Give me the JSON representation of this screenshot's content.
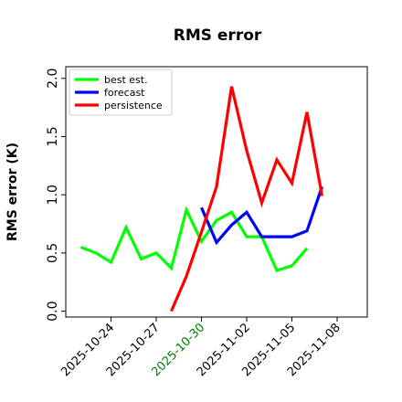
{
  "chart_data": {
    "type": "line",
    "title": "RMS error",
    "xlabel": "",
    "ylabel": "RMS error (K)",
    "ylim": [
      -0.05,
      2.1
    ],
    "xlim": [
      "2025-10-21",
      "2025-11-10"
    ],
    "yticks": [
      "0.0",
      "0.5",
      "1.0",
      "1.5",
      "2.0"
    ],
    "xticks": [
      {
        "date": "2025-10-24",
        "label": "2025-10-24",
        "color": "#000000"
      },
      {
        "date": "2025-10-27",
        "label": "2025-10-27",
        "color": "#000000"
      },
      {
        "date": "2025-10-30",
        "label": "2025-10-30",
        "color": "#008000"
      },
      {
        "date": "2025-11-02",
        "label": "2025-11-02",
        "color": "#000000"
      },
      {
        "date": "2025-11-05",
        "label": "2025-11-05",
        "color": "#000000"
      },
      {
        "date": "2025-11-08",
        "label": "2025-11-08",
        "color": "#000000"
      }
    ],
    "grid": false,
    "legend_position": "top-left",
    "series": [
      {
        "name": "best est.",
        "color": "#00ff00",
        "x": [
          "2025-10-22",
          "2025-10-23",
          "2025-10-24",
          "2025-10-25",
          "2025-10-26",
          "2025-10-27",
          "2025-10-28",
          "2025-10-29",
          "2025-10-30",
          "2025-10-31",
          "2025-11-01",
          "2025-11-02",
          "2025-11-03",
          "2025-11-04",
          "2025-11-05",
          "2025-11-06",
          "2025-11-07"
        ],
        "y": [
          0.55,
          0.5,
          0.42,
          0.72,
          0.45,
          0.5,
          0.37,
          0.87,
          0.6,
          0.78,
          0.85,
          0.64,
          0.64,
          0.35,
          0.39,
          0.54,
          null
        ]
      },
      {
        "name": "forecast",
        "color": "#0000ff",
        "x": [
          "2025-10-30",
          "2025-10-31",
          "2025-11-01",
          "2025-11-02",
          "2025-11-03",
          "2025-11-04",
          "2025-11-05",
          "2025-11-06",
          "2025-11-07"
        ],
        "y": [
          0.89,
          0.59,
          0.74,
          0.85,
          0.64,
          0.64,
          0.64,
          0.69,
          1.07
        ]
      },
      {
        "name": "persistence",
        "color": "#ff0000",
        "x": [
          "2025-10-28",
          "2025-10-29",
          "2025-10-30",
          "2025-10-31",
          "2025-11-01",
          "2025-11-02",
          "2025-11-03",
          "2025-11-04",
          "2025-11-05",
          "2025-11-06",
          "2025-11-07"
        ],
        "y": [
          0.0,
          0.3,
          0.68,
          1.07,
          1.93,
          1.38,
          0.93,
          1.3,
          1.1,
          1.71,
          0.99
        ]
      }
    ]
  }
}
